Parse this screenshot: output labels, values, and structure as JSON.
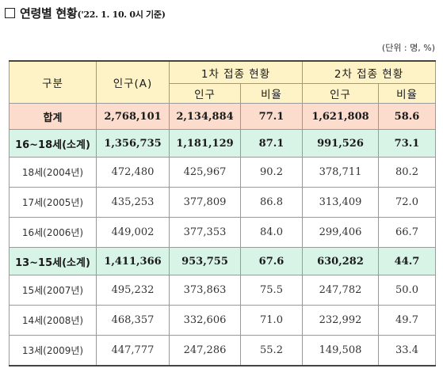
{
  "title": {
    "main": "연령별 현황",
    "date": "('22. 1. 10. 0시 기준)"
  },
  "unit": "(단위 : 명, %)",
  "headers": {
    "category": "구분",
    "population": "인구(A)",
    "dose1": "1차 접종 현황",
    "dose2": "2차 접종 현황",
    "pop": "인구",
    "rate": "비율"
  },
  "rows": [
    {
      "label": "합계",
      "population": "2,768,101",
      "d1_pop": "2,134,884",
      "d1_rate": "77.1",
      "d2_pop": "1,621,808",
      "d2_rate": "58.6"
    },
    {
      "label": "16~18세(소계)",
      "population": "1,356,735",
      "d1_pop": "1,181,129",
      "d1_rate": "87.1",
      "d2_pop": "991,526",
      "d2_rate": "73.1"
    },
    {
      "label": "18세(2004년)",
      "population": "472,480",
      "d1_pop": "425,967",
      "d1_rate": "90.2",
      "d2_pop": "378,711",
      "d2_rate": "80.2"
    },
    {
      "label": "17세(2005년)",
      "population": "435,253",
      "d1_pop": "377,809",
      "d1_rate": "86.8",
      "d2_pop": "313,409",
      "d2_rate": "72.0"
    },
    {
      "label": "16세(2006년)",
      "population": "449,002",
      "d1_pop": "377,353",
      "d1_rate": "84.0",
      "d2_pop": "299,406",
      "d2_rate": "66.7"
    },
    {
      "label": "13~15세(소계)",
      "population": "1,411,366",
      "d1_pop": "953,755",
      "d1_rate": "67.6",
      "d2_pop": "630,282",
      "d2_rate": "44.7"
    },
    {
      "label": "15세(2007년)",
      "population": "495,232",
      "d1_pop": "373,863",
      "d1_rate": "75.5",
      "d2_pop": "247,782",
      "d2_rate": "50.0"
    },
    {
      "label": "14세(2008년)",
      "population": "468,357",
      "d1_pop": "332,606",
      "d1_rate": "71.0",
      "d2_pop": "232,992",
      "d2_rate": "49.7"
    },
    {
      "label": "13세(2009년)",
      "population": "447,777",
      "d1_pop": "247,286",
      "d1_rate": "55.2",
      "d2_pop": "149,508",
      "d2_rate": "33.4"
    }
  ]
}
